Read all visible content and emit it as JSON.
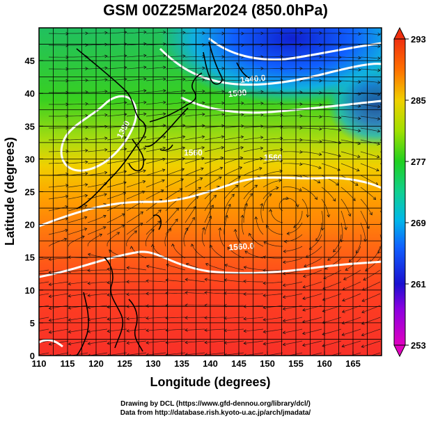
{
  "title": "GSM 00Z25Mar2024 (850.0hPa)",
  "x_axis": {
    "label": "Longitude (degrees)",
    "range": [
      110,
      170
    ],
    "ticks": [
      "110",
      "115",
      "120",
      "125",
      "130",
      "135",
      "140",
      "145",
      "150",
      "155",
      "160",
      "165"
    ]
  },
  "y_axis": {
    "label": "Latitude  (degrees)",
    "range": [
      0,
      50
    ],
    "ticks": [
      "0",
      "5",
      "10",
      "15",
      "20",
      "25",
      "30",
      "35",
      "40",
      "45"
    ]
  },
  "colorbar": {
    "range": [
      253,
      293
    ],
    "ticks": [
      "253",
      "261",
      "269",
      "277",
      "285",
      "293"
    ]
  },
  "contour_labels": [
    {
      "text": "1560.0",
      "lon": 145.5,
      "lat": 16.2,
      "rot": -4
    },
    {
      "text": "1500",
      "lon": 144.8,
      "lat": 39.6,
      "rot": -6
    },
    {
      "text": "1440.0",
      "lon": 147.5,
      "lat": 41.8,
      "rot": -5
    },
    {
      "text": "1380",
      "lon": 125.2,
      "lat": 34.3,
      "rot": -62
    },
    {
      "text": "1560",
      "lon": 137.0,
      "lat": 30.5,
      "rot": 0
    },
    {
      "text": "1560",
      "lon": 151.0,
      "lat": 29.8,
      "rot": 0
    }
  ],
  "credits": {
    "line1": "Drawing by DCL (https://www.gfd-dennou.org/library/dcl/)",
    "line2": "Data from http://database.rish.kyoto-u.ac.jp/arch/jmadata/"
  }
}
